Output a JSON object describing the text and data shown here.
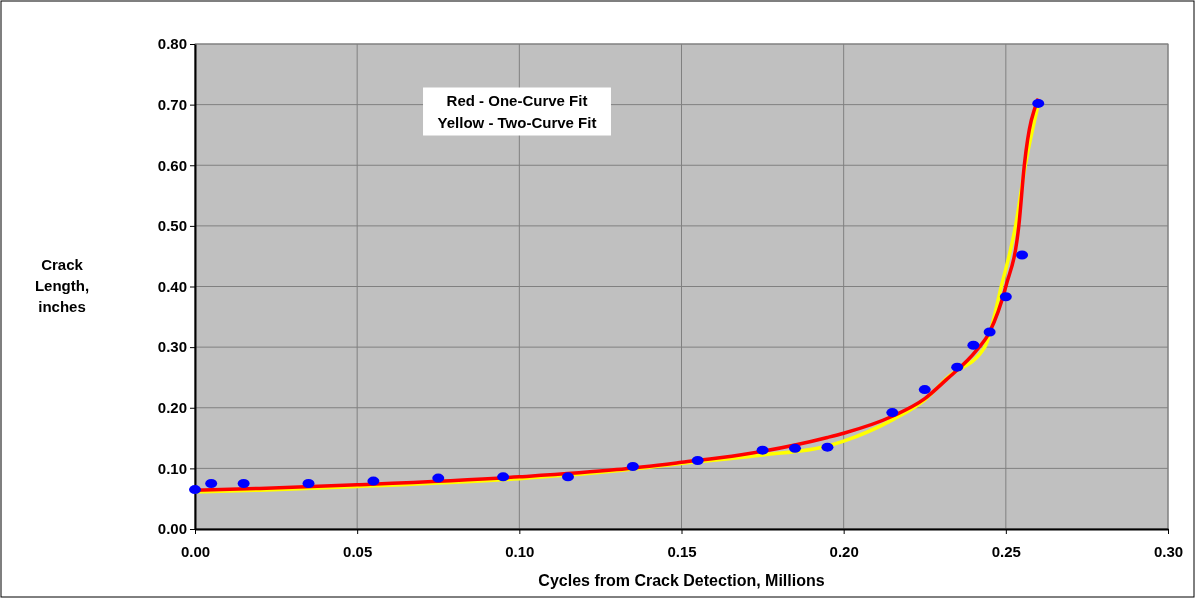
{
  "chart_data": {
    "type": "scatter",
    "xlabel": "Cycles from Crack Detection, Millions",
    "ylabel": "Crack Length, inches",
    "xlim": [
      0,
      0.3
    ],
    "xticks": [
      {
        "value": 0,
        "label": "0.00"
      },
      {
        "value": 0.05,
        "label": "0.05"
      },
      {
        "value": 0.1,
        "label": "0.10"
      },
      {
        "value": 0.15,
        "label": "0.15"
      },
      {
        "value": 0.2,
        "label": "0.20"
      },
      {
        "value": 0.25,
        "label": "0.25"
      },
      {
        "value": 0.3,
        "label": "0.30"
      }
    ],
    "ylim": [
      0,
      0.8
    ],
    "yticks": [
      {
        "value": 0,
        "label": "0.00"
      },
      {
        "value": 0.1,
        "label": "0.10"
      },
      {
        "value": 0.2,
        "label": "0.20"
      },
      {
        "value": 0.3,
        "label": "0.30"
      },
      {
        "value": 0.4,
        "label": "0.40"
      },
      {
        "value": 0.5,
        "label": "0.50"
      },
      {
        "value": 0.6,
        "label": "0.60"
      },
      {
        "value": 0.7,
        "label": "0.70"
      },
      {
        "value": 0.8,
        "label": "0.80"
      }
    ],
    "grid": true,
    "annotations": [
      "Red - One-Curve Fit",
      "Yellow - Two-Curve Fit"
    ],
    "series": [
      {
        "type": "line",
        "color": "#ffff00",
        "x": [
          0,
          0.02,
          0.05,
          0.1,
          0.13,
          0.15,
          0.175,
          0.195,
          0.2,
          0.215,
          0.225,
          0.232,
          0.2435,
          0.2486,
          0.253,
          0.256,
          0.26
        ],
        "values": [
          0.061,
          0.064,
          0.07,
          0.083,
          0.096,
          0.108,
          0.122,
          0.137,
          0.145,
          0.18,
          0.213,
          0.25,
          0.3,
          0.4,
          0.5,
          0.6,
          0.7
        ]
      },
      {
        "type": "line",
        "color": "#ff0000",
        "x": [
          0,
          0.02,
          0.05,
          0.1,
          0.13,
          0.15,
          0.168,
          0.195,
          0.2,
          0.215,
          0.225,
          0.2316,
          0.241,
          0.245,
          0.25,
          0.254,
          0.2557,
          0.26
        ],
        "values": [
          0.064,
          0.067,
          0.073,
          0.086,
          0.098,
          0.11,
          0.122,
          0.151,
          0.158,
          0.186,
          0.215,
          0.246,
          0.295,
          0.325,
          0.4,
          0.5,
          0.6,
          0.71
        ]
      },
      {
        "color": "#0000ff",
        "marker": "circle",
        "x": [
          0,
          0.005,
          0.015,
          0.035,
          0.055,
          0.075,
          0.095,
          0.115,
          0.135,
          0.155,
          0.175,
          0.185,
          0.195,
          0.215,
          0.225,
          0.235,
          0.24,
          0.245,
          0.25,
          0.255,
          0.26
        ],
        "values": [
          0.065,
          0.075,
          0.075,
          0.075,
          0.079,
          0.084,
          0.086,
          0.086,
          0.103,
          0.113,
          0.13,
          0.133,
          0.135,
          0.192,
          0.23,
          0.267,
          0.303,
          0.325,
          0.383,
          0.452,
          0.702
        ]
      }
    ]
  }
}
